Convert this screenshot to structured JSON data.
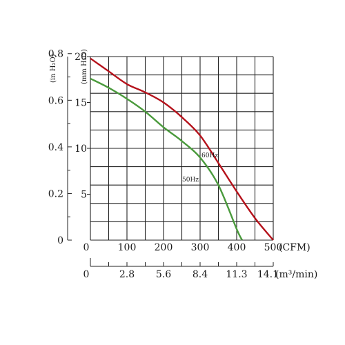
{
  "chart_data": {
    "type": "line",
    "x_cfm_ticks": [
      "0",
      "100",
      "200",
      "300",
      "400",
      "500"
    ],
    "x_cfm_unit": "(CFM)",
    "x_m3_ticks": [
      "0",
      "2.8",
      "5.6",
      "8.4",
      "11.3",
      "14.1"
    ],
    "x_m3_unit": "(m³/min)",
    "y_mm_ticks": [
      "5",
      "10",
      "15",
      "20"
    ],
    "y_mm_unit": "(mm H₂O)",
    "y_in_ticks": [
      "0",
      "0.2",
      "0.4",
      "0.6",
      "0.8"
    ],
    "y_in_unit": "(in H₂O)",
    "xlim": [
      0,
      500
    ],
    "ylim": [
      0,
      20
    ],
    "grid": true,
    "series": [
      {
        "name": "60Hz",
        "color": "#b5121b",
        "x": [
          0,
          50,
          100,
          150,
          200,
          250,
          300,
          350,
          400,
          450,
          500
        ],
        "y": [
          19.8,
          18.4,
          17.0,
          16.1,
          15.0,
          13.4,
          11.4,
          8.4,
          5.3,
          2.4,
          0
        ]
      },
      {
        "name": "50Hz",
        "color": "#4a9a3c",
        "x": [
          0,
          50,
          100,
          150,
          200,
          250,
          300,
          350,
          400,
          415
        ],
        "y": [
          17.6,
          16.6,
          15.4,
          14.0,
          12.3,
          10.8,
          9.0,
          6.0,
          1.2,
          0
        ]
      }
    ]
  }
}
